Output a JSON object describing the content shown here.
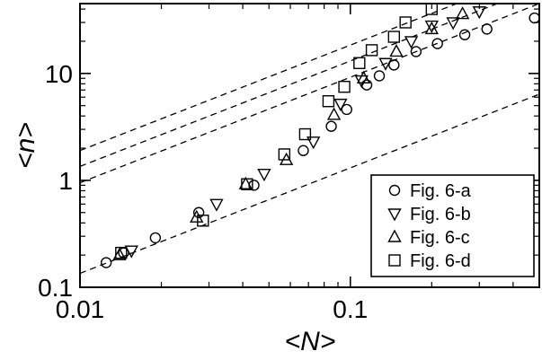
{
  "chart_data": {
    "type": "scatter",
    "xlabel": "<N>",
    "ylabel": "<n>",
    "xscale": "log",
    "yscale": "log",
    "xlim": [
      0.01,
      0.5
    ],
    "ylim": [
      0.1,
      45
    ],
    "xticks": [
      {
        "value": 0.01,
        "label": "0.01"
      },
      {
        "value": 0.1,
        "label": "0.1"
      }
    ],
    "yticks": [
      {
        "value": 0.1,
        "label": "0.1"
      },
      {
        "value": 1,
        "label": "1"
      },
      {
        "value": 10,
        "label": "10"
      }
    ],
    "legend_position": "bottom-right",
    "series": [
      {
        "name": "Fig. 6-a",
        "marker": "circle",
        "x": [
          0.0125,
          0.0145,
          0.019,
          0.0275,
          0.044,
          0.067,
          0.085,
          0.097,
          0.115,
          0.128,
          0.145,
          0.175,
          0.21,
          0.265,
          0.32,
          0.48
        ],
        "y": [
          0.17,
          0.21,
          0.29,
          0.5,
          0.9,
          1.9,
          3.2,
          4.6,
          7.8,
          9.5,
          12,
          16,
          19,
          23,
          26,
          33
        ]
      },
      {
        "name": "Fig. 6-b",
        "marker": "triangle-down",
        "x": [
          0.0155,
          0.032,
          0.048,
          0.073,
          0.092,
          0.11,
          0.135,
          0.168,
          0.2,
          0.24,
          0.3
        ],
        "y": [
          0.22,
          0.6,
          1.15,
          2.3,
          5.2,
          8.6,
          12.5,
          20,
          28,
          30,
          38
        ]
      },
      {
        "name": "Fig. 6-c",
        "marker": "triangle-up",
        "x": [
          0.014,
          0.027,
          0.041,
          0.058,
          0.087,
          0.112,
          0.148,
          0.2,
          0.26
        ],
        "y": [
          0.2,
          0.45,
          0.92,
          1.55,
          4.1,
          9,
          16,
          26,
          36
        ]
      },
      {
        "name": "Fig. 6-d",
        "marker": "square",
        "x": [
          0.0142,
          0.0285,
          0.0415,
          0.057,
          0.068,
          0.083,
          0.095,
          0.108,
          0.12,
          0.145,
          0.16,
          0.2
        ],
        "y": [
          0.21,
          0.42,
          0.92,
          1.75,
          2.7,
          5.5,
          7.5,
          12.5,
          16.5,
          22,
          30,
          40
        ]
      }
    ],
    "reference_lines": [
      {
        "style": "dashed",
        "x": [
          0.01,
          0.5
        ],
        "y": [
          0.135,
          6.4
        ]
      },
      {
        "style": "dashed",
        "x": [
          0.01,
          0.5
        ],
        "y": [
          0.95,
          45
        ]
      },
      {
        "style": "dashed",
        "x": [
          0.01,
          0.5
        ],
        "y": [
          1.35,
          64
        ]
      },
      {
        "style": "dashed",
        "x": [
          0.01,
          0.5
        ],
        "y": [
          1.9,
          90
        ]
      }
    ]
  }
}
